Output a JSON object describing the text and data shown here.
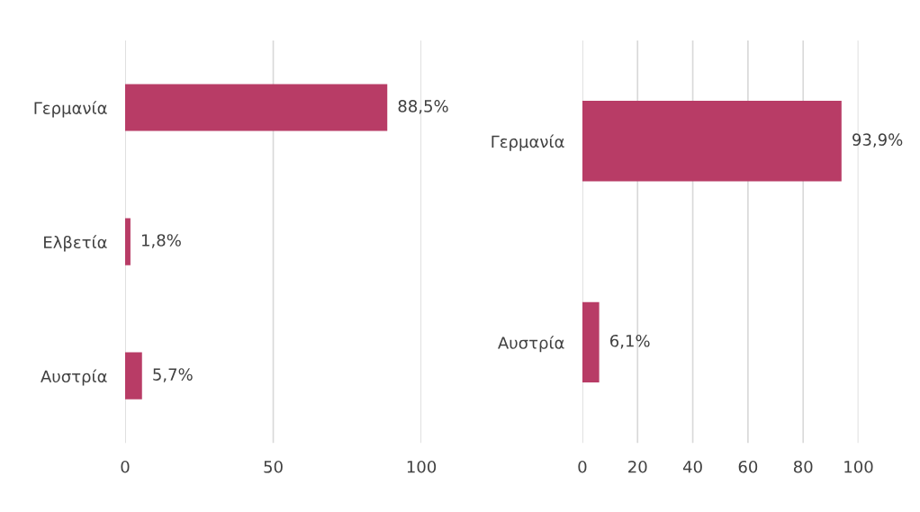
{
  "chart_data": [
    {
      "type": "bar",
      "orientation": "horizontal",
      "categories": [
        "Γερμανία",
        "Ελβετία",
        "Αυστρία"
      ],
      "values": [
        88.5,
        1.8,
        5.7
      ],
      "value_labels": [
        "88,5%",
        "1,8%",
        "5,7%"
      ],
      "color": "#b83c66",
      "xlim": [
        0,
        100
      ],
      "xticks": [
        0,
        50,
        100
      ],
      "grid": "x",
      "legend": false
    },
    {
      "type": "bar",
      "orientation": "horizontal",
      "categories": [
        "Γερμανία",
        "Αυστρία"
      ],
      "values": [
        93.9,
        6.1
      ],
      "value_labels": [
        "93,9%",
        "6,1%"
      ],
      "color": "#b83c66",
      "xlim": [
        0,
        100
      ],
      "xticks": [
        0,
        20,
        40,
        60,
        80,
        100
      ],
      "grid": "x",
      "legend": false
    }
  ]
}
